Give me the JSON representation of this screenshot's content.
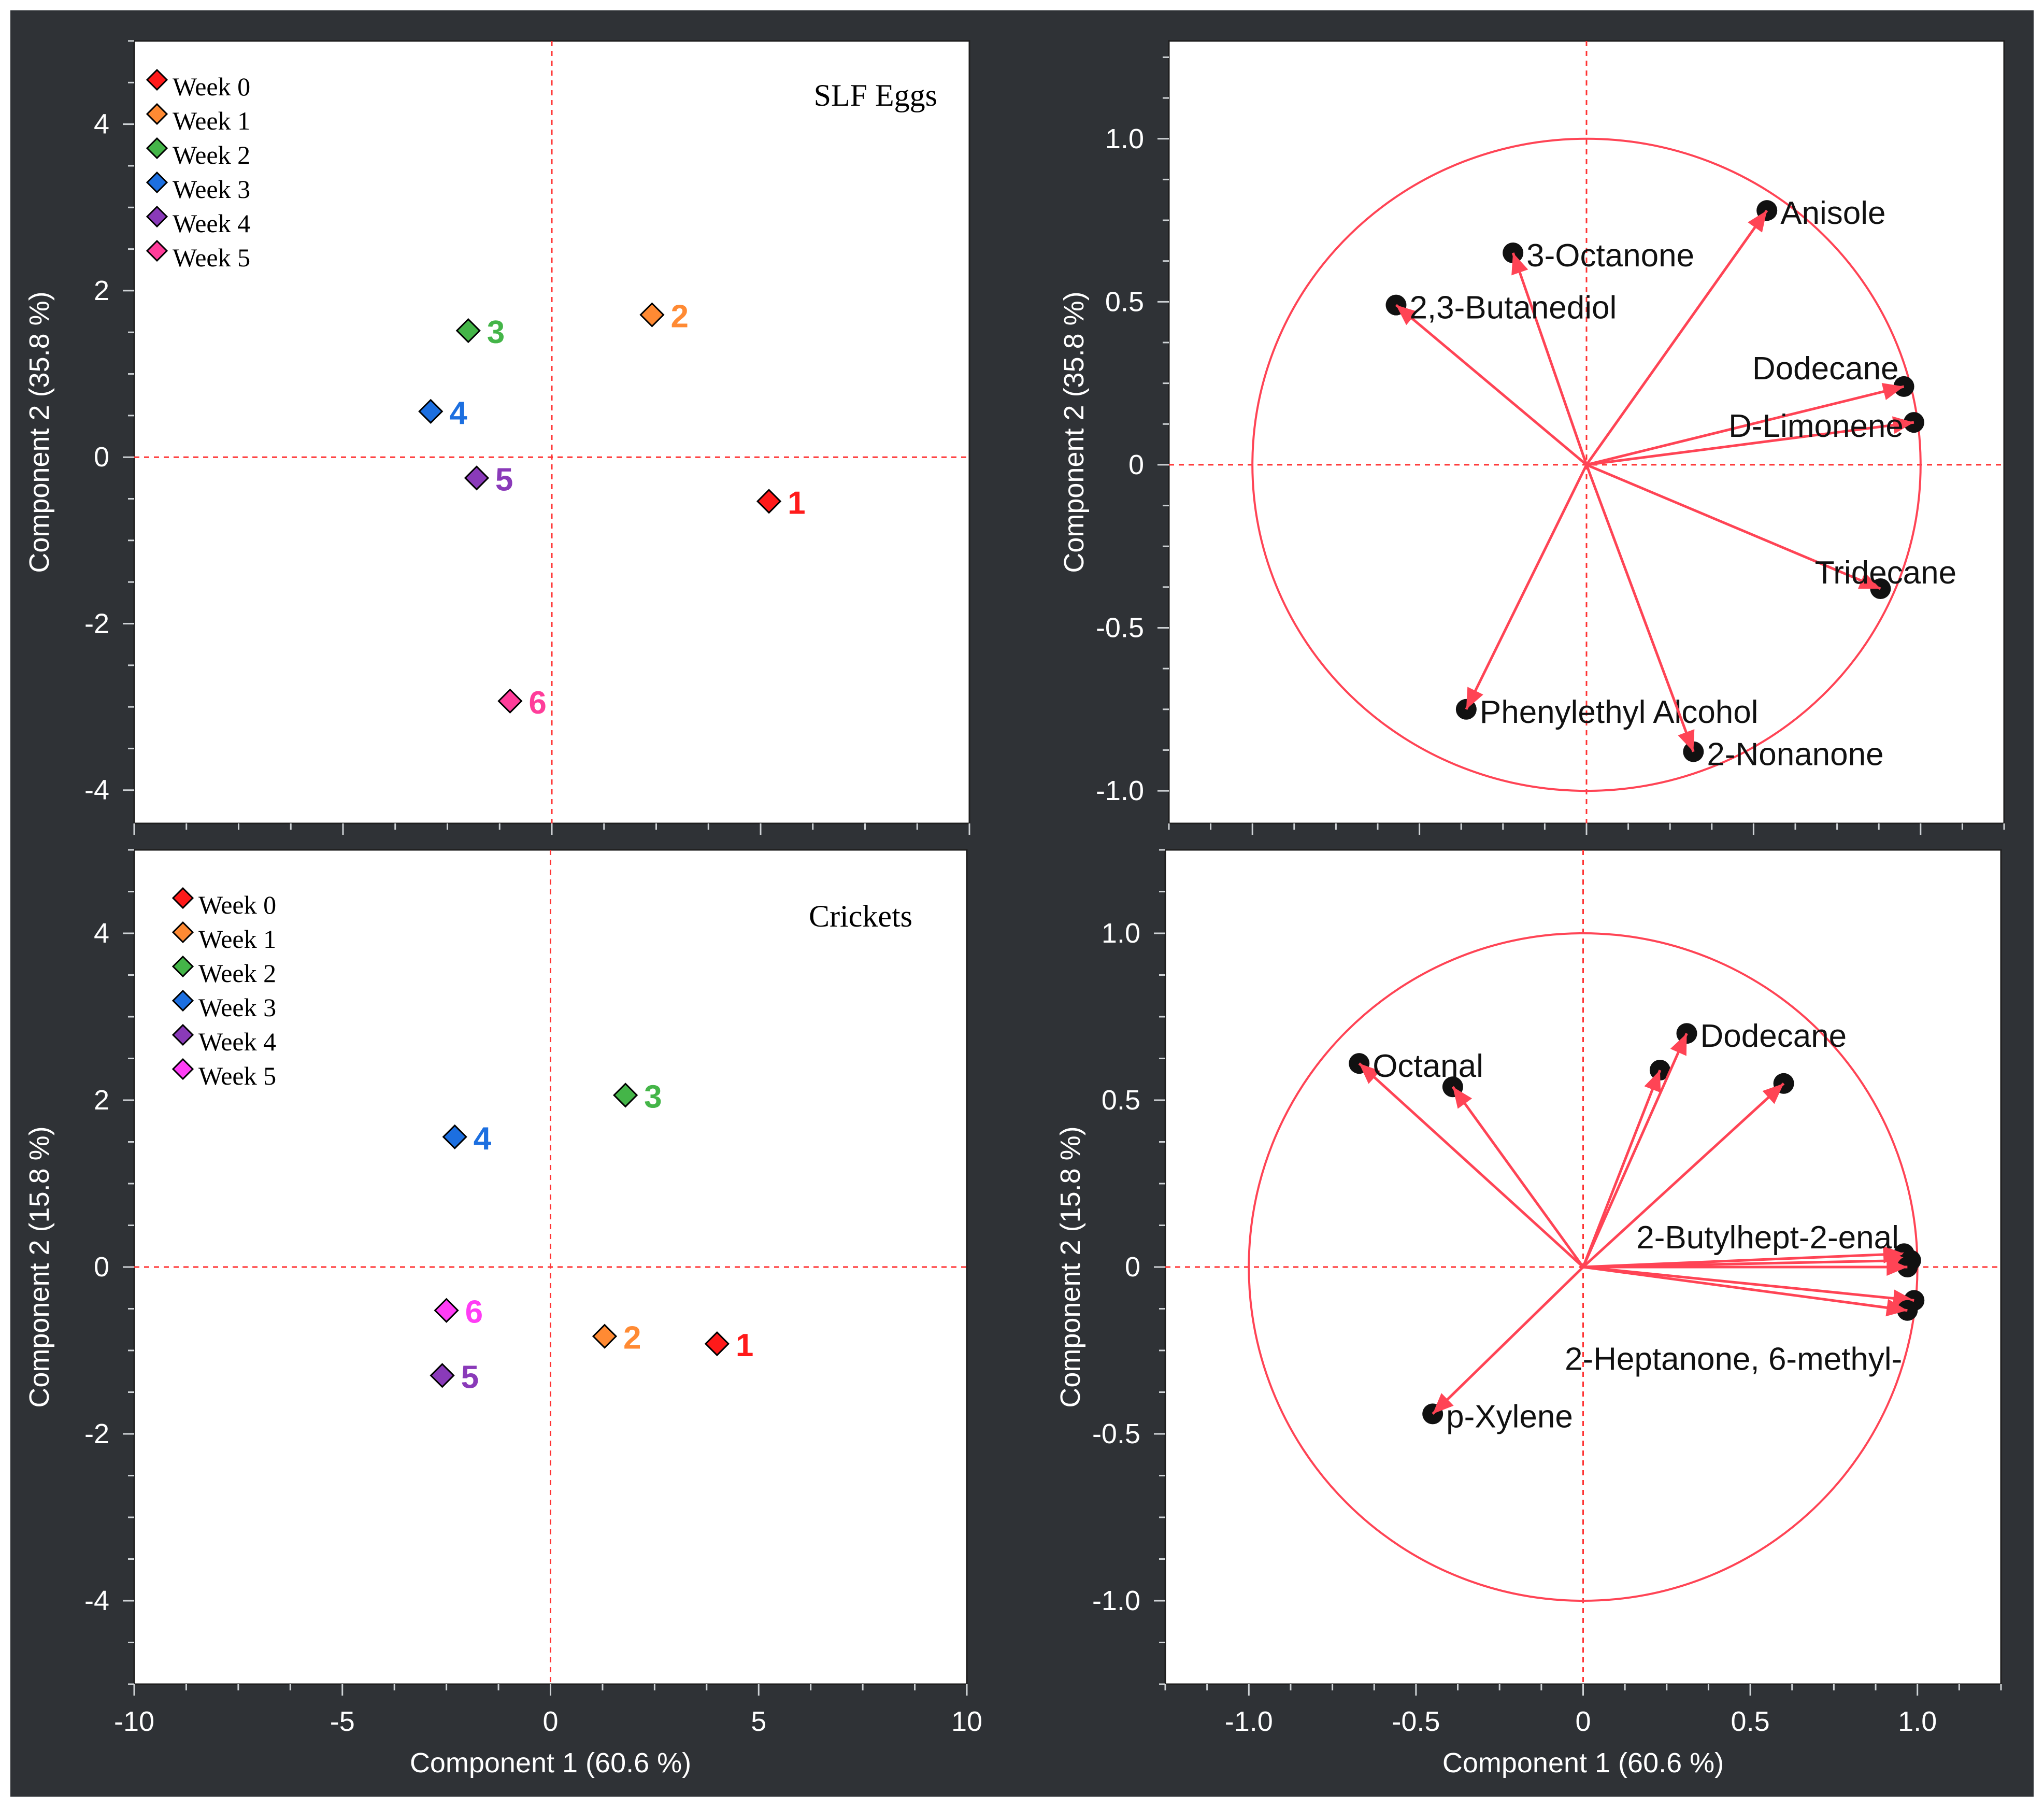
{
  "colors": {
    "frame": "#2f3236",
    "guide": "#ff3333",
    "vector": "#ff4455",
    "circle": "#ff4455",
    "marker_edge": "#000000",
    "tick_text": "#ffffff",
    "week0": "#ff1a1a",
    "week1": "#ff8a33",
    "week2": "#44b548",
    "week3": "#1c6fe0",
    "week4": "#8a3ab9",
    "week5_eggs": "#ff3d9a",
    "week5_crickets": "#ff3df5"
  },
  "axes": {
    "score_xlabel": "Component 1  (60.6 %)",
    "loading_xlabel": "Component 1  (60.6 %)"
  },
  "chart_data": [
    {
      "id": "eggs-scores",
      "type": "scatter",
      "title": "SLF Eggs",
      "xlabel": "",
      "ylabel": "Component 2  (35.8 %)",
      "xlim": [
        -10,
        10
      ],
      "ylim": [
        -4.4,
        5.0
      ],
      "xticks": [
        -10,
        -5,
        0,
        5,
        10
      ],
      "yticks": [
        -4,
        -2,
        0,
        2,
        4
      ],
      "show_xticklabels": false,
      "legend": [
        {
          "label": "Week 0",
          "color_key": "week0"
        },
        {
          "label": "Week 1",
          "color_key": "week1"
        },
        {
          "label": "Week 2",
          "color_key": "week2"
        },
        {
          "label": "Week 3",
          "color_key": "week3"
        },
        {
          "label": "Week 4",
          "color_key": "week4"
        },
        {
          "label": "Week 5",
          "color_key": "week5_eggs"
        }
      ],
      "points": [
        {
          "label": "1",
          "x": 5.2,
          "y": -0.53,
          "color_key": "week0"
        },
        {
          "label": "2",
          "x": 2.4,
          "y": 1.71,
          "color_key": "week1"
        },
        {
          "label": "3",
          "x": -2.0,
          "y": 1.52,
          "color_key": "week2"
        },
        {
          "label": "4",
          "x": -2.9,
          "y": 0.55,
          "color_key": "week3"
        },
        {
          "label": "5",
          "x": -1.8,
          "y": -0.25,
          "color_key": "week4"
        },
        {
          "label": "6",
          "x": -1.0,
          "y": -2.93,
          "color_key": "week5_eggs"
        }
      ]
    },
    {
      "id": "eggs-loadings",
      "type": "scatter",
      "title": "",
      "xlabel": "",
      "ylabel": "Component 2  (35.8 %)",
      "xlim": [
        -1.25,
        1.25
      ],
      "ylim": [
        -1.1,
        1.3
      ],
      "xticks": [
        -1.0,
        -0.5,
        0,
        0.5,
        1.0
      ],
      "yticks": [
        -1.0,
        -0.5,
        0,
        0.5,
        1.0
      ],
      "ytick_labels": [
        "-1.0",
        "-0.5",
        "0",
        "0.5",
        "1.0"
      ],
      "show_xticklabels": false,
      "circle_radius": 1.0,
      "vectors": [
        {
          "label": "Anisole",
          "x": 0.54,
          "y": 0.78,
          "anchor": "right"
        },
        {
          "label": "3-Octanone",
          "x": -0.22,
          "y": 0.65,
          "anchor": "right"
        },
        {
          "label": "2,3-Butanediol",
          "x": -0.57,
          "y": 0.49,
          "anchor": "right"
        },
        {
          "label": "Dodecane",
          "x": 0.95,
          "y": 0.24,
          "anchor": "above-left"
        },
        {
          "label": "D-Limonene",
          "x": 0.98,
          "y": 0.13,
          "anchor": "left"
        },
        {
          "label": "Tridecane",
          "x": 0.88,
          "y": -0.38,
          "anchor": "above-center"
        },
        {
          "label": "Phenylethyl Alcohol",
          "x": -0.36,
          "y": -0.75,
          "anchor": "right"
        },
        {
          "label": "2-Nonanone",
          "x": 0.32,
          "y": -0.88,
          "anchor": "right"
        }
      ]
    },
    {
      "id": "crickets-scores",
      "type": "scatter",
      "title": "Crickets",
      "xlabel": "Component 1  (60.6 %)",
      "ylabel": "Component 2  (15.8 %)",
      "xlim": [
        -10,
        10
      ],
      "ylim": [
        -5.0,
        5.0
      ],
      "xticks": [
        -10,
        -5,
        0,
        5,
        10
      ],
      "yticks": [
        -4,
        -2,
        0,
        2,
        4
      ],
      "show_xticklabels": true,
      "legend": [
        {
          "label": "Week 0",
          "color_key": "week0"
        },
        {
          "label": "Week 1",
          "color_key": "week1"
        },
        {
          "label": "Week 2",
          "color_key": "week2"
        },
        {
          "label": "Week 3",
          "color_key": "week3"
        },
        {
          "label": "Week 4",
          "color_key": "week4"
        },
        {
          "label": "Week 5",
          "color_key": "week5_crickets"
        }
      ],
      "points": [
        {
          "label": "1",
          "x": 4.0,
          "y": -0.92,
          "color_key": "week0"
        },
        {
          "label": "2",
          "x": 1.3,
          "y": -0.83,
          "color_key": "week1"
        },
        {
          "label": "3",
          "x": 1.8,
          "y": 2.06,
          "color_key": "week2"
        },
        {
          "label": "4",
          "x": -2.3,
          "y": 1.56,
          "color_key": "week3"
        },
        {
          "label": "5",
          "x": -2.6,
          "y": -1.3,
          "color_key": "week4"
        },
        {
          "label": "6",
          "x": -2.5,
          "y": -0.52,
          "color_key": "week5_crickets"
        }
      ]
    },
    {
      "id": "crickets-loadings",
      "type": "scatter",
      "title": "",
      "xlabel": "Component 1  (60.6 %)",
      "ylabel": "Component 2  (15.8 %)",
      "xlim": [
        -1.25,
        1.25
      ],
      "ylim": [
        -1.25,
        1.25
      ],
      "xticks": [
        -1.0,
        -0.5,
        0,
        0.5,
        1.0
      ],
      "xtick_labels": [
        "-1.0",
        "-0.5",
        "0",
        "0.5",
        "1.0"
      ],
      "yticks": [
        -1.0,
        -0.5,
        0,
        0.5,
        1.0
      ],
      "ytick_labels": [
        "-1.0",
        "-0.5",
        "0",
        "0.5",
        "1.0"
      ],
      "show_xticklabels": true,
      "circle_radius": 1.0,
      "vectors": [
        {
          "label": "Octanal",
          "x": -0.67,
          "y": 0.61,
          "anchor": "right"
        },
        {
          "label": "",
          "x": -0.39,
          "y": 0.54,
          "anchor": "right"
        },
        {
          "label": "",
          "x": 0.23,
          "y": 0.59,
          "anchor": "right"
        },
        {
          "label": "Dodecane",
          "x": 0.31,
          "y": 0.7,
          "anchor": "right"
        },
        {
          "label": "",
          "x": 0.6,
          "y": 0.55,
          "anchor": "right"
        },
        {
          "label": "2-Butylhept-2-enal",
          "x": 0.96,
          "y": 0.04,
          "anchor": "above-end"
        },
        {
          "label": "",
          "x": 0.98,
          "y": 0.02,
          "anchor": "none"
        },
        {
          "label": "",
          "x": 0.97,
          "y": 0.0,
          "anchor": "none"
        },
        {
          "label": "",
          "x": 0.99,
          "y": -0.1,
          "anchor": "none"
        },
        {
          "label": "2-Heptanone, 6-methyl-",
          "x": 0.97,
          "y": -0.13,
          "anchor": "below-end"
        },
        {
          "label": "p-Xylene",
          "x": -0.45,
          "y": -0.44,
          "anchor": "right"
        }
      ]
    }
  ]
}
